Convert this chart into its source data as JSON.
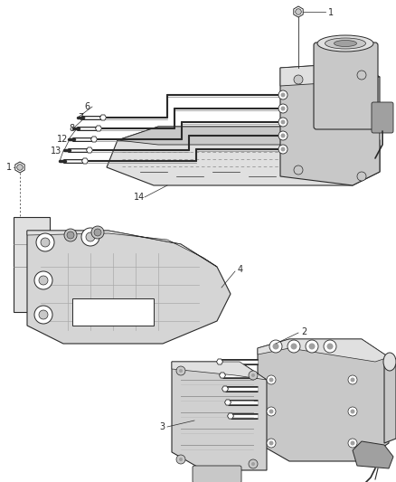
{
  "bg_color": "#ffffff",
  "line_color": "#2a2a2a",
  "figsize": [
    4.39,
    5.33
  ],
  "dpi": 100,
  "gray_light": "#e0e0e0",
  "gray_mid": "#c8c8c8",
  "gray_dark": "#a0a0a0"
}
